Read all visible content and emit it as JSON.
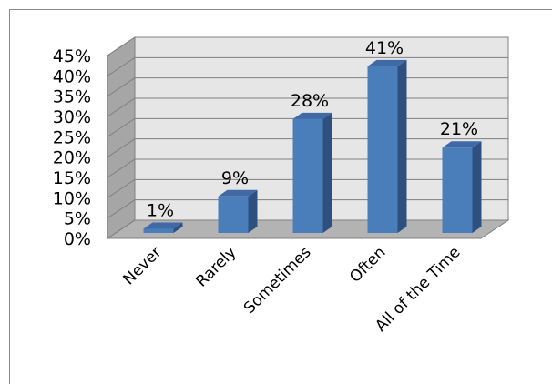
{
  "chart_data": {
    "type": "bar",
    "categories": [
      "Never",
      "Rarely",
      "Sometimes",
      "Often",
      "All of the Time"
    ],
    "values": [
      1,
      9,
      28,
      41,
      21
    ],
    "data_labels": [
      "1%",
      "9%",
      "28%",
      "41%",
      "21%"
    ],
    "y_ticks": [
      "0%",
      "5%",
      "10%",
      "15%",
      "20%",
      "25%",
      "30%",
      "35%",
      "40%",
      "45%"
    ],
    "ylim": [
      0,
      45
    ],
    "grid": true,
    "style": "3d-column",
    "colors": {
      "bar_front": "#4a7ebb",
      "bar_side": "#2e507e",
      "bar_top": "#3f6aa6",
      "back_wall": "#e6e6e6",
      "side_wall": "#a6a6a6",
      "floor": "#b3b3b3",
      "gridline": "#808080"
    }
  }
}
